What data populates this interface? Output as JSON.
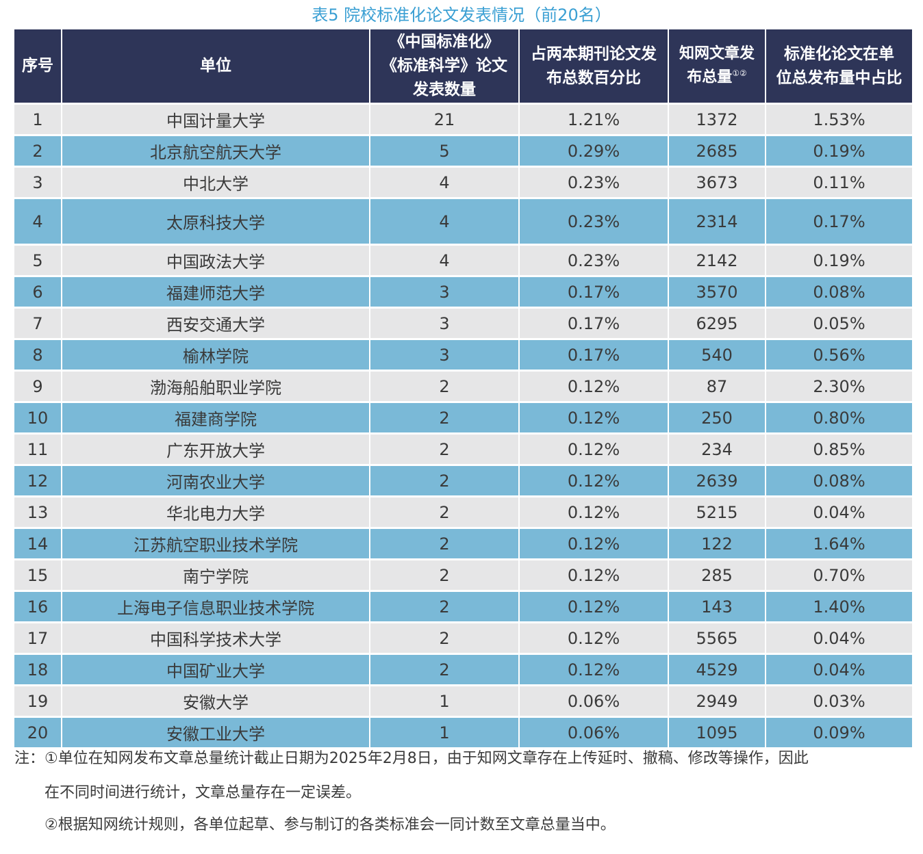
{
  "caption": "表5 院校标准化论文发表情况（前20名）",
  "headers": {
    "col1": "序号",
    "col2": "单位",
    "col3_line1": "《中国标准化》",
    "col3_line2": "《标准科学》论文",
    "col3_line3": "发表数量",
    "col4_line1": "占两本期刊论文发",
    "col4_line2": "布总数百分比",
    "col5_line1": "知网文章发",
    "col5_line2": "布总量",
    "col5_sup": "①②",
    "col6_line1": "标准化论文在单",
    "col6_line2": "位总发布量中占比"
  },
  "rows": [
    [
      "1",
      "中国计量大学",
      "21",
      "1.21%",
      "1372",
      "1.53%"
    ],
    [
      "2",
      "北京航空航天大学",
      "5",
      "0.29%",
      "2685",
      "0.19%"
    ],
    [
      "3",
      "中北大学",
      "4",
      "0.23%",
      "3673",
      "0.11%"
    ],
    [
      "4",
      "太原科技大学",
      "4",
      "0.23%",
      "2314",
      "0.17%"
    ],
    [
      "5",
      "中国政法大学",
      "4",
      "0.23%",
      "2142",
      "0.19%"
    ],
    [
      "6",
      "福建师范大学",
      "3",
      "0.17%",
      "3570",
      "0.08%"
    ],
    [
      "7",
      "西安交通大学",
      "3",
      "0.17%",
      "6295",
      "0.05%"
    ],
    [
      "8",
      "榆林学院",
      "3",
      "0.17%",
      "540",
      "0.56%"
    ],
    [
      "9",
      "渤海船舶职业学院",
      "2",
      "0.12%",
      "87",
      "2.30%"
    ],
    [
      "10",
      "福建商学院",
      "2",
      "0.12%",
      "250",
      "0.80%"
    ],
    [
      "11",
      "广东开放大学",
      "2",
      "0.12%",
      "234",
      "0.85%"
    ],
    [
      "12",
      "河南农业大学",
      "2",
      "0.12%",
      "2639",
      "0.08%"
    ],
    [
      "13",
      "华北电力大学",
      "2",
      "0.12%",
      "5215",
      "0.04%"
    ],
    [
      "14",
      "江苏航空职业技术学院",
      "2",
      "0.12%",
      "122",
      "1.64%"
    ],
    [
      "15",
      "南宁学院",
      "2",
      "0.12%",
      "285",
      "0.70%"
    ],
    [
      "16",
      "上海电子信息职业技术学院",
      "2",
      "0.12%",
      "143",
      "1.40%"
    ],
    [
      "17",
      "中国科学技术大学",
      "2",
      "0.12%",
      "5565",
      "0.04%"
    ],
    [
      "18",
      "中国矿业大学",
      "2",
      "0.12%",
      "4529",
      "0.04%"
    ],
    [
      "19",
      "安徽大学",
      "1",
      "0.06%",
      "2949",
      "0.03%"
    ],
    [
      "20",
      "安徽工业大学",
      "1",
      "0.06%",
      "1095",
      "0.09%"
    ]
  ],
  "notes": {
    "line1": "注：①单位在知网发布文章总量统计截止日期为2025年2月8日，由于知网文章存在上传延时、撤稿、修改等操作，因此",
    "line2": "在不同时间进行统计，文章总量存在一定误差。",
    "line3": "②根据知网统计规则，各单位起草、参与制订的各类标准会一同计数至文章总量当中。"
  }
}
